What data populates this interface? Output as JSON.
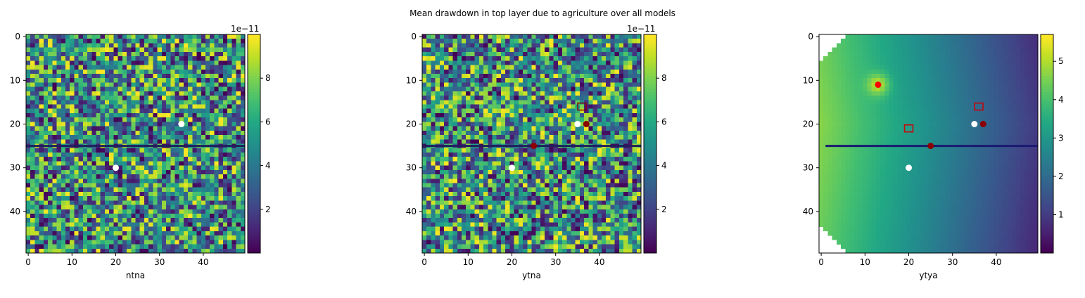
{
  "figure": {
    "suptitle": "Mean drawdown in top layer due to agriculture over all models"
  },
  "chart_data": [
    {
      "type": "heatmap",
      "title": "",
      "xlabel": "ntna",
      "ylabel": "",
      "grid_size": [
        50,
        50
      ],
      "xlim": [
        0,
        49
      ],
      "ylim": [
        49,
        0
      ],
      "x_ticks": [
        "0",
        "10",
        "20",
        "30",
        "40"
      ],
      "y_ticks": [
        "0",
        "10",
        "20",
        "30",
        "40"
      ],
      "colormap": "viridis",
      "pattern": "random noise",
      "value_range": [
        0.0,
        1e-10
      ],
      "colorbar": {
        "ticks": [
          "2",
          "4",
          "6",
          "8"
        ],
        "tick_values": [
          2,
          4,
          6,
          8
        ],
        "range": [
          0,
          10
        ],
        "offset_label": "1e−11"
      },
      "line": {
        "row": 25,
        "x_range": [
          0,
          49
        ],
        "color": "#1f1f5c"
      },
      "markers": [
        {
          "x": 35,
          "y": 20,
          "color": "#ffffff",
          "shape": "circle"
        },
        {
          "x": 20,
          "y": 30,
          "color": "#ffffff",
          "shape": "circle"
        }
      ]
    },
    {
      "type": "heatmap",
      "title": "",
      "xlabel": "ytna",
      "ylabel": "",
      "grid_size": [
        50,
        50
      ],
      "xlim": [
        0,
        49
      ],
      "ylim": [
        49,
        0
      ],
      "x_ticks": [
        "0",
        "10",
        "20",
        "30",
        "40"
      ],
      "y_ticks": [
        "0",
        "10",
        "20",
        "30",
        "40"
      ],
      "colormap": "viridis",
      "pattern": "random noise",
      "value_range": [
        0.0,
        1e-10
      ],
      "colorbar": {
        "ticks": [
          "2",
          "4",
          "6",
          "8"
        ],
        "tick_values": [
          2,
          4,
          6,
          8
        ],
        "range": [
          0,
          10
        ],
        "offset_label": "1e−11"
      },
      "line": {
        "row": 25,
        "x_range": [
          0,
          49
        ],
        "color": "#1f1f5c"
      },
      "markers": [
        {
          "x": 35,
          "y": 20,
          "color": "#ffffff",
          "shape": "circle"
        },
        {
          "x": 20,
          "y": 30,
          "color": "#ffffff",
          "shape": "circle"
        },
        {
          "x": 37,
          "y": 20,
          "color": "#8b0000",
          "shape": "circle"
        },
        {
          "x": 25,
          "y": 25,
          "color": "#8b0000",
          "shape": "circle"
        },
        {
          "x": 36,
          "y": 16,
          "color": "#8b0000",
          "shape": "square"
        }
      ]
    },
    {
      "type": "heatmap",
      "title": "",
      "xlabel": "ytya",
      "ylabel": "",
      "grid_size": [
        50,
        50
      ],
      "xlim": [
        0,
        49
      ],
      "ylim": [
        49,
        0
      ],
      "x_ticks": [
        "0",
        "10",
        "20",
        "30",
        "40"
      ],
      "y_ticks": [
        "0",
        "10",
        "20",
        "30",
        "40"
      ],
      "colormap": "viridis",
      "pattern": "smooth gradient, peak at well (13, 11), decreasing to the right",
      "value_range": [
        0.0,
        5.7
      ],
      "colorbar": {
        "ticks": [
          "1",
          "2",
          "3",
          "4",
          "5"
        ],
        "tick_values": [
          1,
          2,
          3,
          4,
          5
        ],
        "range": [
          0,
          5.7
        ],
        "offset_label": ""
      },
      "masked_corners": true,
      "line": {
        "row": 25,
        "x_range": [
          1,
          49
        ],
        "color": "#191970"
      },
      "markers": [
        {
          "x": 13,
          "y": 11,
          "color": "#ff0000",
          "shape": "circle"
        },
        {
          "x": 35,
          "y": 20,
          "color": "#ffffff",
          "shape": "circle"
        },
        {
          "x": 20,
          "y": 30,
          "color": "#ffffff",
          "shape": "circle"
        },
        {
          "x": 37,
          "y": 20,
          "color": "#8b0000",
          "shape": "circle"
        },
        {
          "x": 25,
          "y": 25,
          "color": "#8b0000",
          "shape": "circle"
        },
        {
          "x": 36,
          "y": 16,
          "color": "#cc0000",
          "shape": "square"
        },
        {
          "x": 20,
          "y": 21,
          "color": "#cc0000",
          "shape": "square"
        }
      ]
    }
  ]
}
